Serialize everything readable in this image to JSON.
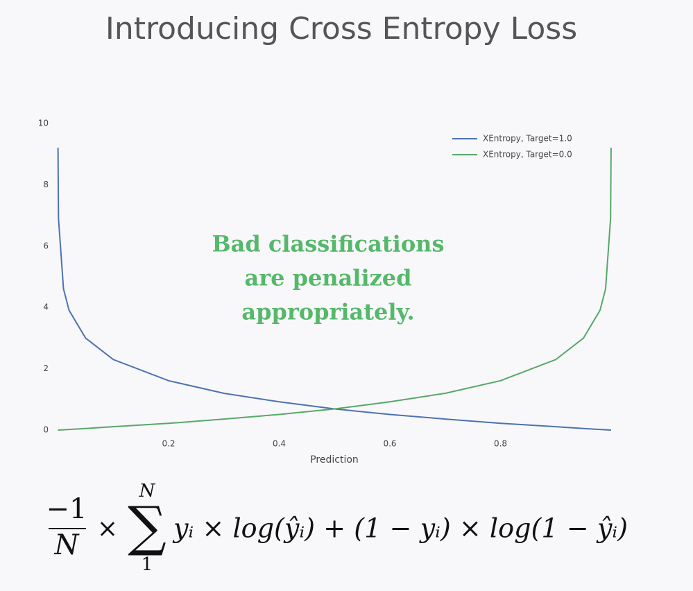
{
  "chart_data": {
    "type": "line",
    "title": "Introducing Cross Entropy Loss",
    "xlabel": "Prediction",
    "annotation": [
      "Bad classifications",
      "are penalized",
      "appropriately."
    ],
    "x": [
      0.0001,
      0.001,
      0.01,
      0.02,
      0.05,
      0.1,
      0.2,
      0.3,
      0.4,
      0.5,
      0.6,
      0.7,
      0.8,
      0.9,
      0.95,
      0.98,
      0.99,
      0.999,
      0.9999
    ],
    "series": [
      {
        "name": "XEntropy, Target=1.0",
        "color": "#4c72b0",
        "values": [
          9.21,
          6.91,
          4.61,
          3.91,
          3.0,
          2.3,
          1.61,
          1.2,
          0.92,
          0.69,
          0.51,
          0.36,
          0.22,
          0.11,
          0.05,
          0.02,
          0.01,
          0.0,
          0.0
        ]
      },
      {
        "name": "XEntropy, Target=0.0",
        "color": "#55a868",
        "values": [
          0.0,
          0.0,
          0.01,
          0.02,
          0.05,
          0.11,
          0.22,
          0.36,
          0.51,
          0.69,
          0.92,
          1.2,
          1.61,
          2.3,
          3.0,
          3.91,
          4.61,
          6.91,
          9.21
        ]
      }
    ],
    "xlim": [
      0,
      1
    ],
    "xticks": [
      0.2,
      0.4,
      0.6,
      0.8
    ],
    "ylim": [
      0,
      10
    ],
    "yticks": [
      0,
      2,
      4,
      6,
      8,
      10
    ],
    "grid": false,
    "legend": "upper right"
  },
  "formula": {
    "numerator": "−1",
    "denominator": "N",
    "times": "×",
    "sum": "∑",
    "upper": "N",
    "lower": "1",
    "body": "yᵢ × log(ŷᵢ) + (1 − yᵢ) × log(1 − ŷᵢ)"
  }
}
